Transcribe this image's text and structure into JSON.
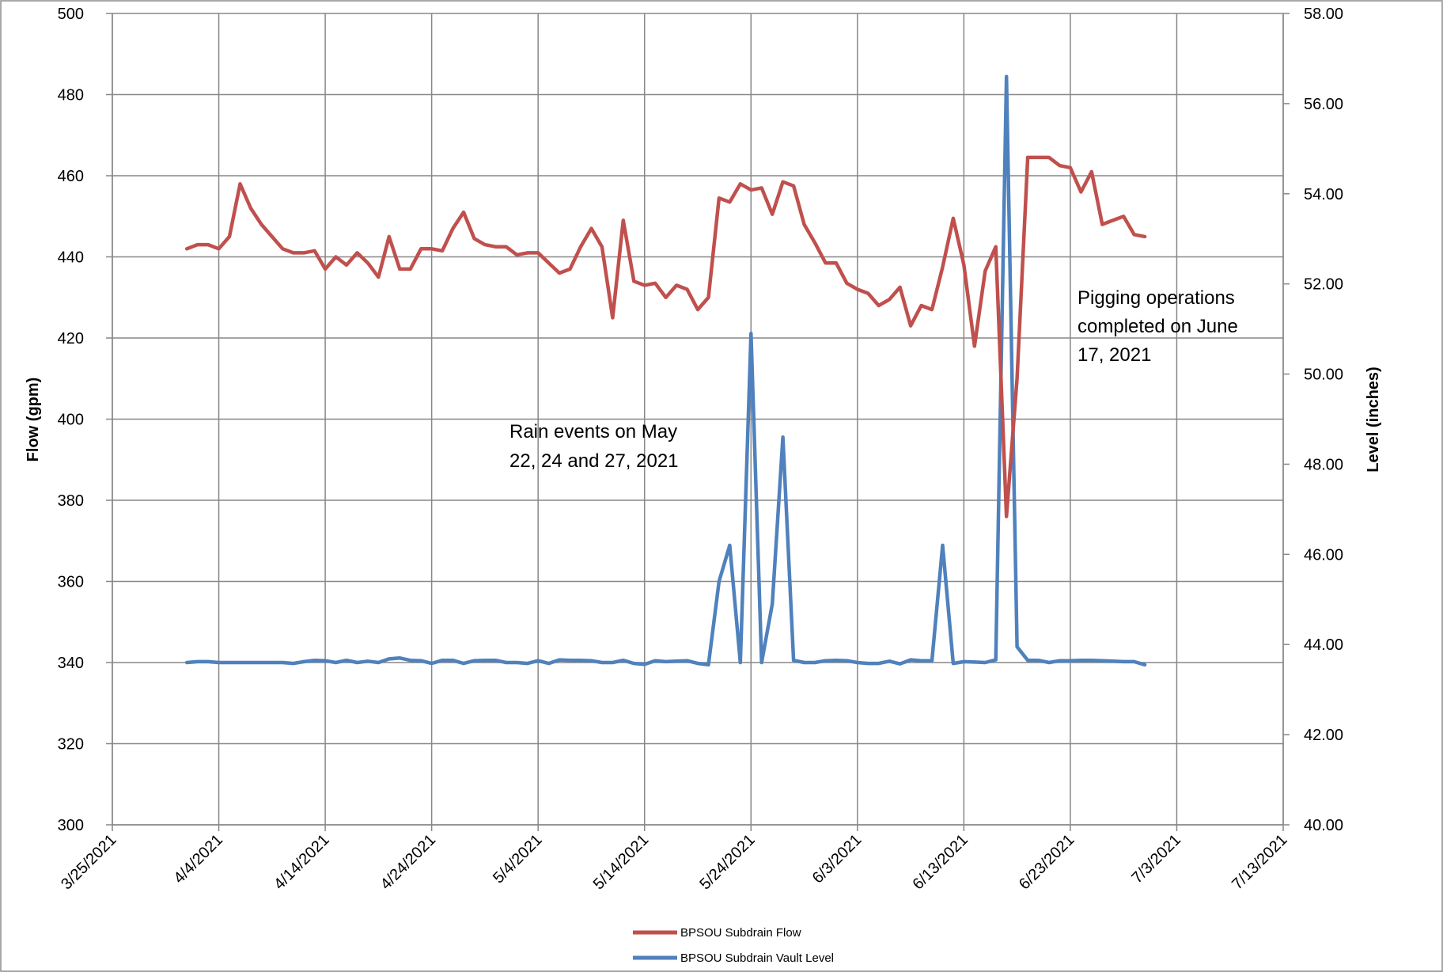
{
  "chart_data": {
    "type": "line",
    "x_labels": [
      "3/25/2021",
      "4/4/2021",
      "4/14/2021",
      "4/24/2021",
      "5/4/2021",
      "5/14/2021",
      "5/24/2021",
      "6/3/2021",
      "6/13/2021",
      "6/23/2021",
      "7/3/2021",
      "7/13/2021"
    ],
    "xlim": [
      "2021-03-25",
      "2021-07-13"
    ],
    "y_left": {
      "label": "Flow (gpm)",
      "lim": [
        300,
        500
      ],
      "ticks": [
        "300",
        "320",
        "340",
        "360",
        "380",
        "400",
        "420",
        "440",
        "460",
        "480",
        "500"
      ]
    },
    "y_right": {
      "label": "Level (inches)",
      "lim": [
        40,
        58
      ],
      "ticks": [
        "40.00",
        "42.00",
        "44.00",
        "46.00",
        "48.00",
        "50.00",
        "52.00",
        "54.00",
        "56.00",
        "58.00"
      ]
    },
    "grid": true,
    "legend_position": "bottom",
    "annotations": [
      {
        "lines": [
          "Rain events on May",
          "22, 24 and 27, 2021"
        ]
      },
      {
        "lines": [
          "Pigging  operations",
          "completed on June",
          "17, 2021"
        ]
      }
    ],
    "series": [
      {
        "name": "BPSOU Subdrain Flow",
        "axis": "left",
        "color": "#c0504d",
        "x": [
          "2021-04-01",
          "2021-04-02",
          "2021-04-03",
          "2021-04-04",
          "2021-04-05",
          "2021-04-06",
          "2021-04-07",
          "2021-04-08",
          "2021-04-09",
          "2021-04-10",
          "2021-04-11",
          "2021-04-12",
          "2021-04-13",
          "2021-04-14",
          "2021-04-15",
          "2021-04-16",
          "2021-04-17",
          "2021-04-18",
          "2021-04-19",
          "2021-04-20",
          "2021-04-21",
          "2021-04-22",
          "2021-04-23",
          "2021-04-24",
          "2021-04-25",
          "2021-04-26",
          "2021-04-27",
          "2021-04-28",
          "2021-04-29",
          "2021-04-30",
          "2021-05-01",
          "2021-05-02",
          "2021-05-03",
          "2021-05-04",
          "2021-05-05",
          "2021-05-06",
          "2021-05-07",
          "2021-05-08",
          "2021-05-09",
          "2021-05-10",
          "2021-05-11",
          "2021-05-12",
          "2021-05-13",
          "2021-05-14",
          "2021-05-15",
          "2021-05-16",
          "2021-05-17",
          "2021-05-18",
          "2021-05-19",
          "2021-05-20",
          "2021-05-21",
          "2021-05-22",
          "2021-05-23",
          "2021-05-24",
          "2021-05-25",
          "2021-05-26",
          "2021-05-27",
          "2021-05-28",
          "2021-05-29",
          "2021-05-30",
          "2021-05-31",
          "2021-06-01",
          "2021-06-02",
          "2021-06-03",
          "2021-06-04",
          "2021-06-05",
          "2021-06-06",
          "2021-06-07",
          "2021-06-08",
          "2021-06-09",
          "2021-06-10",
          "2021-06-11",
          "2021-06-12",
          "2021-06-13",
          "2021-06-14",
          "2021-06-15",
          "2021-06-16",
          "2021-06-17",
          "2021-06-18",
          "2021-06-19",
          "2021-06-20",
          "2021-06-21",
          "2021-06-22",
          "2021-06-23",
          "2021-06-24",
          "2021-06-25",
          "2021-06-26",
          "2021-06-27",
          "2021-06-28",
          "2021-06-29",
          "2021-06-30"
        ],
        "values": [
          442,
          443,
          443,
          442,
          445,
          458,
          452,
          448,
          445,
          442,
          441,
          441,
          441.5,
          437,
          440,
          438,
          441,
          438.5,
          435,
          445,
          437,
          437,
          442,
          442,
          441.5,
          447,
          451,
          444.5,
          443,
          442.5,
          442.5,
          440.5,
          441,
          441,
          438.5,
          436,
          437,
          442.5,
          447,
          442.5,
          425,
          449,
          434,
          433,
          433.5,
          430,
          433,
          432,
          427,
          430,
          454.5,
          453.5,
          458,
          456.5,
          457,
          450.5,
          458.5,
          457.5,
          448,
          443.5,
          438.5,
          438.5,
          433.5,
          432,
          431,
          428,
          429.5,
          432.5,
          423,
          428,
          427,
          437.5,
          449.5,
          438,
          418,
          436.5,
          442.5,
          376,
          410,
          464.5,
          464.5,
          464.5,
          462.5,
          462,
          456,
          461,
          448,
          449,
          450,
          445.5,
          445
        ]
      },
      {
        "name": "BPSOU Subdrain Vault Level",
        "axis": "right",
        "color": "#4f81bd",
        "x": [
          "2021-04-01",
          "2021-04-02",
          "2021-04-03",
          "2021-04-04",
          "2021-04-05",
          "2021-04-06",
          "2021-04-07",
          "2021-04-08",
          "2021-04-09",
          "2021-04-10",
          "2021-04-11",
          "2021-04-12",
          "2021-04-13",
          "2021-04-14",
          "2021-04-15",
          "2021-04-16",
          "2021-04-17",
          "2021-04-18",
          "2021-04-19",
          "2021-04-20",
          "2021-04-21",
          "2021-04-22",
          "2021-04-23",
          "2021-04-24",
          "2021-04-25",
          "2021-04-26",
          "2021-04-27",
          "2021-04-28",
          "2021-04-29",
          "2021-04-30",
          "2021-05-01",
          "2021-05-02",
          "2021-05-03",
          "2021-05-04",
          "2021-05-05",
          "2021-05-06",
          "2021-05-07",
          "2021-05-08",
          "2021-05-09",
          "2021-05-10",
          "2021-05-11",
          "2021-05-12",
          "2021-05-13",
          "2021-05-14",
          "2021-05-15",
          "2021-05-16",
          "2021-05-17",
          "2021-05-18",
          "2021-05-19",
          "2021-05-20",
          "2021-05-21",
          "2021-05-22",
          "2021-05-23",
          "2021-05-24",
          "2021-05-25",
          "2021-05-26",
          "2021-05-27",
          "2021-05-28",
          "2021-05-29",
          "2021-05-30",
          "2021-05-31",
          "2021-06-01",
          "2021-06-02",
          "2021-06-03",
          "2021-06-04",
          "2021-06-05",
          "2021-06-06",
          "2021-06-07",
          "2021-06-08",
          "2021-06-09",
          "2021-06-10",
          "2021-06-11",
          "2021-06-12",
          "2021-06-13",
          "2021-06-14",
          "2021-06-15",
          "2021-06-16",
          "2021-06-17",
          "2021-06-18",
          "2021-06-19",
          "2021-06-20",
          "2021-06-21",
          "2021-06-22",
          "2021-06-23",
          "2021-06-24",
          "2021-06-25",
          "2021-06-26",
          "2021-06-27",
          "2021-06-28",
          "2021-06-29",
          "2021-06-30"
        ],
        "values": [
          43.6,
          43.62,
          43.62,
          43.6,
          43.6,
          43.6,
          43.6,
          43.6,
          43.6,
          43.6,
          43.58,
          43.62,
          43.65,
          43.64,
          43.6,
          43.65,
          43.6,
          43.63,
          43.6,
          43.68,
          43.7,
          43.65,
          43.64,
          43.58,
          43.65,
          43.65,
          43.58,
          43.64,
          43.65,
          43.65,
          43.6,
          43.6,
          43.58,
          43.64,
          43.58,
          43.66,
          43.65,
          43.65,
          43.64,
          43.6,
          43.6,
          43.65,
          43.58,
          43.56,
          43.64,
          43.62,
          43.63,
          43.64,
          43.58,
          43.55,
          45.4,
          46.2,
          43.6,
          50.9,
          43.6,
          44.9,
          48.6,
          43.65,
          43.6,
          43.6,
          43.64,
          43.65,
          43.64,
          43.6,
          43.58,
          43.58,
          43.63,
          43.57,
          43.66,
          43.64,
          43.64,
          46.2,
          43.58,
          43.62,
          43.61,
          43.6,
          43.66,
          56.6,
          43.95,
          43.65,
          43.65,
          43.6,
          43.64,
          43.64,
          43.65,
          43.65,
          43.64,
          43.63,
          43.62,
          43.62,
          43.55
        ]
      }
    ]
  }
}
